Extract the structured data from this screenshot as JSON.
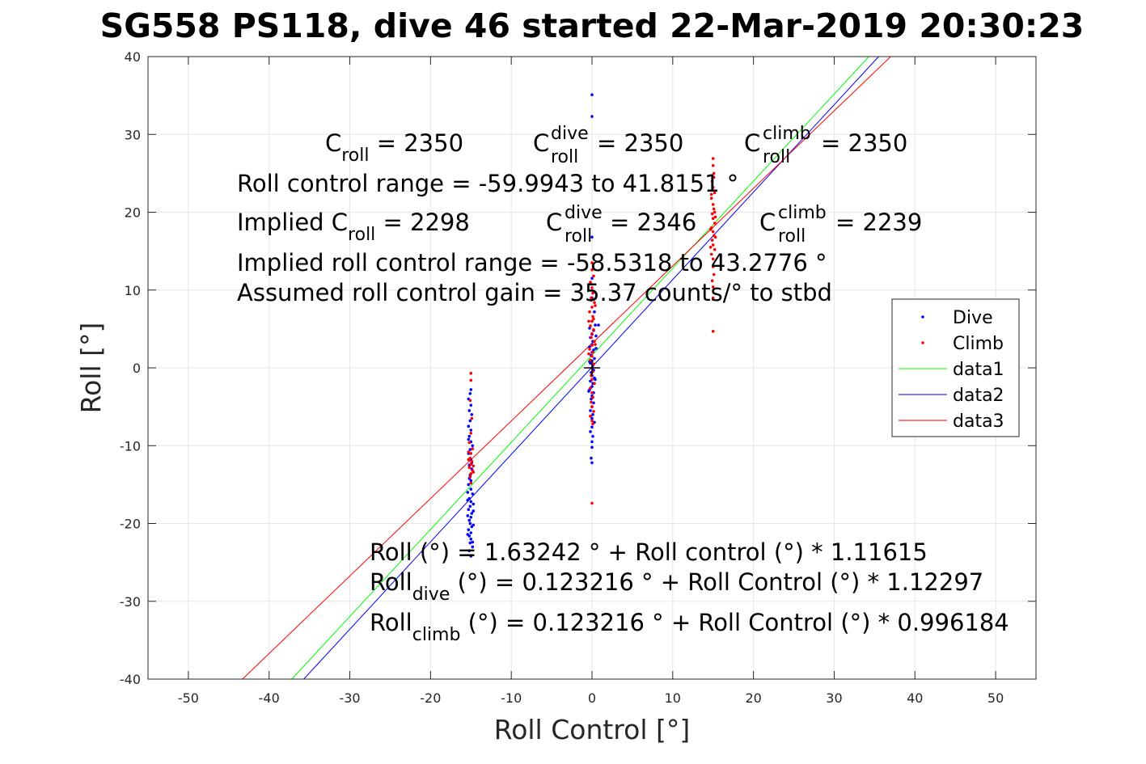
{
  "chart_data": {
    "type": "scatter",
    "title": "SG558 PS118, dive 46 started 22-Mar-2019 20:30:23",
    "xlabel": "Roll Control [°]",
    "ylabel": "Roll [°]",
    "xlim": [
      -55,
      55
    ],
    "ylim": [
      -40,
      40
    ],
    "xticks": [
      -50,
      -40,
      -30,
      -20,
      -10,
      0,
      10,
      20,
      30,
      40,
      50
    ],
    "yticks": [
      -40,
      -30,
      -20,
      -10,
      0,
      10,
      20,
      30,
      40
    ],
    "xtick_labels": [
      "-50",
      "-40",
      "-30",
      "-20",
      "-10",
      "0",
      "10",
      "20",
      "30",
      "40",
      "50"
    ],
    "ytick_labels": [
      "-40",
      "-30",
      "-20",
      "-10",
      "0",
      "10",
      "20",
      "30",
      "40"
    ],
    "grid": true,
    "legend_position": "right",
    "series": [
      {
        "name": "Dive",
        "kind": "points",
        "color": "#0000ff",
        "points": [
          [
            0,
            35.1
          ],
          [
            0,
            32.3
          ],
          [
            0,
            16.8
          ],
          [
            0,
            11.5
          ],
          [
            0,
            9.0
          ],
          [
            0.3,
            7.2
          ],
          [
            0,
            6.0
          ],
          [
            0.4,
            5.5
          ],
          [
            -0.3,
            5.1
          ],
          [
            0.2,
            4.8
          ],
          [
            0,
            4.3
          ],
          [
            -0.2,
            3.9
          ],
          [
            0.1,
            3.4
          ],
          [
            0,
            3.0
          ],
          [
            -0.3,
            2.7
          ],
          [
            0.2,
            2.3
          ],
          [
            0,
            2.0
          ],
          [
            -0.1,
            1.6
          ],
          [
            0.3,
            1.2
          ],
          [
            0,
            0.9
          ],
          [
            -0.2,
            0.6
          ],
          [
            0.1,
            0.3
          ],
          [
            0,
            0.0
          ],
          [
            0.2,
            -0.3
          ],
          [
            -0.1,
            -0.6
          ],
          [
            0,
            -1.0
          ],
          [
            0.3,
            -1.3
          ],
          [
            -0.2,
            -1.7
          ],
          [
            0.1,
            -2.0
          ],
          [
            0,
            -2.4
          ],
          [
            -0.3,
            -2.8
          ],
          [
            0.2,
            -3.2
          ],
          [
            0,
            -3.6
          ],
          [
            -0.1,
            -4.0
          ],
          [
            0.2,
            -4.5
          ],
          [
            0,
            -5.0
          ],
          [
            -0.2,
            -5.5
          ],
          [
            0.1,
            -6.0
          ],
          [
            0,
            -6.5
          ],
          [
            0.3,
            -7.0
          ],
          [
            0,
            -7.6
          ],
          [
            -0.2,
            -8.2
          ],
          [
            0.1,
            -8.8
          ],
          [
            0,
            -9.5
          ],
          [
            0,
            -10.2
          ],
          [
            -0.1,
            -11.6
          ],
          [
            0,
            -12.2
          ],
          [
            0.8,
            5.5
          ],
          [
            0.5,
            4.1
          ],
          [
            -0.4,
            -3.0
          ],
          [
            0.4,
            -1.5
          ],
          [
            -0.3,
            0.8
          ],
          [
            0.5,
            2.5
          ],
          [
            -15,
            -2.8
          ],
          [
            -15.1,
            -3.3
          ],
          [
            -15.3,
            -4.0
          ],
          [
            -15.0,
            -4.8
          ],
          [
            -15.2,
            -5.5
          ],
          [
            -14.9,
            -6.0
          ],
          [
            -15.1,
            -6.8
          ],
          [
            -15.3,
            -7.5
          ],
          [
            -15,
            -8.0
          ],
          [
            -15.2,
            -8.8
          ],
          [
            -15,
            -9.5
          ],
          [
            -14.8,
            -10.0
          ],
          [
            -15.1,
            -10.5
          ],
          [
            -15.3,
            -11.0
          ],
          [
            -15,
            -11.8
          ],
          [
            -15.2,
            -12.5
          ],
          [
            -14.9,
            -13.0
          ],
          [
            -15.1,
            -13.8
          ],
          [
            -15,
            -14.5
          ],
          [
            -15.3,
            -15.0
          ],
          [
            -15,
            -15.6
          ],
          [
            -14.8,
            -16.2
          ],
          [
            -15.2,
            -16.8
          ],
          [
            -15,
            -17.2
          ],
          [
            -15.1,
            -17.8
          ],
          [
            -15.3,
            -18.2
          ],
          [
            -14.9,
            -18.7
          ],
          [
            -15,
            -19.2
          ],
          [
            -15.2,
            -19.6
          ],
          [
            -15.1,
            -20.0
          ],
          [
            -14.9,
            -20.4
          ],
          [
            -15.3,
            -20.8
          ],
          [
            -15,
            -21.2
          ],
          [
            -15.2,
            -21.6
          ],
          [
            -15,
            -22.0
          ],
          [
            -15.1,
            -22.5
          ],
          [
            -14.8,
            -23.0
          ],
          [
            -15.2,
            -23.5
          ],
          [
            -15,
            -24.2
          ],
          [
            -15.4,
            -16.0
          ],
          [
            -14.7,
            -17.5
          ],
          [
            -15.4,
            -19.0
          ],
          [
            -14.7,
            -20.2
          ],
          [
            -15.4,
            -21.4
          ],
          [
            -14.7,
            -18.4
          ],
          [
            -15.4,
            -17.0
          ],
          [
            -14.8,
            -22.4
          ],
          [
            -15.3,
            -9.2
          ],
          [
            -14.9,
            -12.2
          ],
          [
            -15.2,
            -14.2
          ]
        ]
      },
      {
        "name": "Climb",
        "kind": "points",
        "color": "#ff0000",
        "points": [
          [
            0,
            13.5
          ],
          [
            0,
            12.6
          ],
          [
            0.2,
            11.8
          ],
          [
            -0.2,
            11.0
          ],
          [
            0,
            10.3
          ],
          [
            0.1,
            9.6
          ],
          [
            -0.1,
            9.0
          ],
          [
            0.3,
            8.4
          ],
          [
            0,
            7.8
          ],
          [
            -0.3,
            7.2
          ],
          [
            0.1,
            6.6
          ],
          [
            0,
            6.0
          ],
          [
            -0.2,
            5.4
          ],
          [
            0.2,
            4.9
          ],
          [
            0,
            4.4
          ],
          [
            -0.1,
            3.9
          ],
          [
            0.3,
            3.4
          ],
          [
            0,
            2.9
          ],
          [
            -0.3,
            2.4
          ],
          [
            0.1,
            2.0
          ],
          [
            0,
            1.5
          ],
          [
            -0.2,
            1.0
          ],
          [
            0.2,
            0.5
          ],
          [
            0,
            0.0
          ],
          [
            0.1,
            -0.5
          ],
          [
            -0.1,
            -1.0
          ],
          [
            0,
            -1.5
          ],
          [
            0.3,
            -2.0
          ],
          [
            -0.2,
            -2.6
          ],
          [
            0,
            -3.2
          ],
          [
            0.1,
            -3.8
          ],
          [
            -0.1,
            -4.4
          ],
          [
            0,
            -5.0
          ],
          [
            0.2,
            -5.6
          ],
          [
            -0.2,
            -6.2
          ],
          [
            0,
            -6.8
          ],
          [
            0.1,
            -7.2
          ],
          [
            0,
            -17.4
          ],
          [
            0.4,
            3.0
          ],
          [
            -0.4,
            6.0
          ],
          [
            0.4,
            8.0
          ],
          [
            -0.4,
            1.8
          ],
          [
            0.2,
            6.3
          ],
          [
            -0.1,
            8.7
          ],
          [
            15,
            26.9
          ],
          [
            15,
            26.0
          ],
          [
            15.1,
            25.0
          ],
          [
            14.9,
            24.0
          ],
          [
            15,
            23.2
          ],
          [
            15.2,
            22.5
          ],
          [
            14.8,
            21.8
          ],
          [
            15,
            21.0
          ],
          [
            15.1,
            20.4
          ],
          [
            14.9,
            19.8
          ],
          [
            15,
            19.2
          ],
          [
            15.2,
            18.6
          ],
          [
            14.8,
            18.0
          ],
          [
            15,
            17.5
          ],
          [
            15.1,
            17.0
          ],
          [
            14.9,
            16.4
          ],
          [
            15,
            15.8
          ],
          [
            15.2,
            15.2
          ],
          [
            14.8,
            14.6
          ],
          [
            15,
            14.0
          ],
          [
            15,
            13.0
          ],
          [
            15.1,
            12.0
          ],
          [
            14.9,
            11.2
          ],
          [
            15,
            10.4
          ],
          [
            15,
            9.0
          ],
          [
            15,
            4.7
          ],
          [
            15.2,
            20.0
          ],
          [
            14.8,
            22.3
          ],
          [
            15.1,
            24.5
          ],
          [
            15.3,
            16.8
          ],
          [
            14.7,
            17.8
          ],
          [
            15.3,
            19.4
          ],
          [
            14.7,
            15.5
          ],
          [
            -15,
            -0.7
          ],
          [
            -15,
            -1.6
          ],
          [
            -15.1,
            -4.2
          ],
          [
            -14.9,
            -6.5
          ],
          [
            -15,
            -8.4
          ],
          [
            -15.2,
            -9.6
          ],
          [
            -14.8,
            -10.4
          ],
          [
            -15,
            -11.0
          ],
          [
            -15.1,
            -11.6
          ],
          [
            -14.9,
            -12.0
          ],
          [
            -15,
            -12.4
          ],
          [
            -15.2,
            -12.8
          ],
          [
            -14.8,
            -13.2
          ],
          [
            -15,
            -13.6
          ],
          [
            -15.1,
            -14.0
          ],
          [
            -15,
            -14.8
          ],
          [
            -15.3,
            -11.8
          ],
          [
            -14.7,
            -12.6
          ],
          [
            -15.3,
            -10.8
          ],
          [
            -14.7,
            -13.4
          ]
        ]
      },
      {
        "name": "data1",
        "kind": "line",
        "color": "#00ff00",
        "x": [
          -37.2,
          34.3
        ],
        "y": [
          -40,
          40
        ]
      },
      {
        "name": "data2",
        "kind": "line",
        "color": "#0000ff",
        "x": [
          -35.7,
          35.5
        ],
        "y": [
          -40,
          40
        ]
      },
      {
        "name": "data3",
        "kind": "line",
        "color": "#ff0000",
        "x": [
          -43.3,
          37.0
        ],
        "y": [
          -40,
          40
        ]
      }
    ],
    "marker": {
      "x": 0,
      "y": 0,
      "symbol": "+"
    },
    "legend": [
      "Dive",
      "Climb",
      "data1",
      "data2",
      "data3"
    ]
  },
  "annotations": {
    "c_roll": {
      "main": "C",
      "sub": "roll",
      "rest": " = 2350"
    },
    "c_roll_dive": {
      "main": "C",
      "sup": "dive",
      "sub": "roll",
      "rest": " = 2350"
    },
    "c_roll_climb": {
      "main": "C",
      "sup": "climb",
      "sub": "roll",
      "rest": " = 2350"
    },
    "roll_control_range": "Roll control range = -59.9943 to 41.8151 °",
    "implied_c_roll": {
      "main": "Implied C",
      "sub": "roll",
      "rest": " = 2298"
    },
    "implied_c_dive": {
      "main": "C",
      "sup": "dive",
      "sub": "roll",
      "rest": " = 2346"
    },
    "implied_c_climb": {
      "main": "C",
      "sup": "climb",
      "sub": "roll",
      "rest": " = 2239"
    },
    "implied_range": "Implied roll control range = -58.5318 to 43.2776 °",
    "gain": "Assumed roll control gain = 35.37 counts/° to stbd",
    "fit_all": "Roll (°) = 1.63242 ° + Roll control (°) * 1.11615",
    "fit_dive": {
      "main": "Roll",
      "sub": "dive",
      "rest": " (°) = 0.123216 ° + Roll Control (°) * 1.12297"
    },
    "fit_climb": {
      "main": "Roll",
      "sub": "climb",
      "rest": " (°) = 0.123216 ° + Roll Control (°) * 0.996184"
    }
  }
}
